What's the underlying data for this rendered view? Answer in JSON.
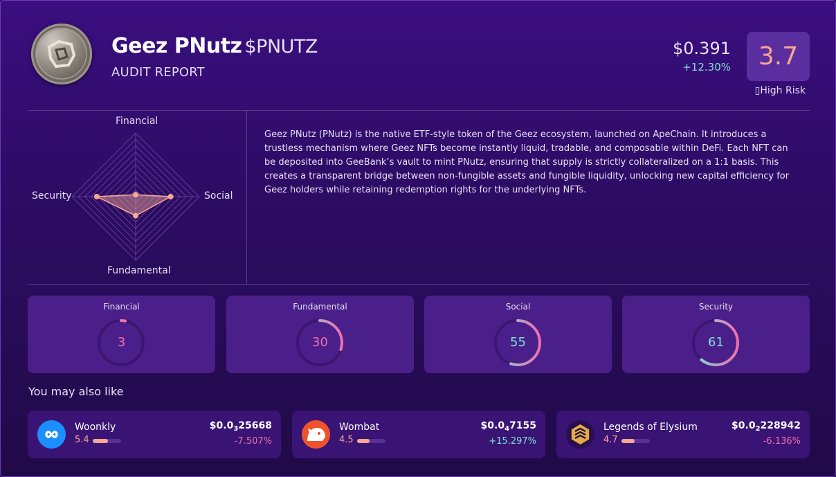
{
  "header": {
    "name": "Geez PNutz",
    "ticker": "$PNUTZ",
    "subtitle": "AUDIT REPORT",
    "price": "$0.391",
    "change": "+12.30%",
    "score": "3.7",
    "risk_label": "High Risk"
  },
  "radar": {
    "axes": {
      "top": "Financial",
      "right": "Social",
      "bottom": "Fundamental",
      "left": "Security"
    },
    "values": {
      "financial": 3,
      "social": 55,
      "fundamental": 30,
      "security": 61
    },
    "max": 100
  },
  "description": "Geez PNutz (PNutz) is the native ETF-style token of the Geez ecosystem, launched on ApeChain. It introduces a trustless mechanism where Geez NFTs become instantly liquid, tradable, and composable within DeFi. Each NFT can be deposited into GeeBank’s vault to mint PNutz, ensuring that supply is strictly collateralized on a 1:1 basis. This creates a transparent bridge between non-fungible assets and fungible liquidity, unlocking new capital efficiency for Geez holders while retaining redemption rights for the underlying NFTs.",
  "score_cards": [
    {
      "name": "Financial",
      "value": 3,
      "color": "#f06fae"
    },
    {
      "name": "Fundamental",
      "value": 30,
      "color": "#f06fae"
    },
    {
      "name": "Social",
      "value": 55,
      "color": "#7ee0d8"
    },
    {
      "name": "Security",
      "value": 61,
      "color": "#7ee0d8"
    }
  ],
  "recommendations_title": "You may also like",
  "recommendations": [
    {
      "name": "Woonkly",
      "rating": "5.4",
      "rating_value": 5.4,
      "price_prefix": "$0.0",
      "price_sub": "3",
      "price_rest": "25668",
      "change": "-7.507%",
      "direction": "down",
      "icon": "infinity-icon"
    },
    {
      "name": "Wombat",
      "rating": "4.5",
      "rating_value": 4.5,
      "price_prefix": "$0.0",
      "price_sub": "4",
      "price_rest": "7155",
      "change": "+15.297%",
      "direction": "up",
      "icon": "wombat-icon"
    },
    {
      "name": "Legends of Elysium",
      "rating": "4.7",
      "rating_value": 4.7,
      "price_prefix": "$0.0",
      "price_sub": "2",
      "price_rest": "228942",
      "change": "-6.136%",
      "direction": "down",
      "icon": "legends-logo-icon"
    }
  ]
}
